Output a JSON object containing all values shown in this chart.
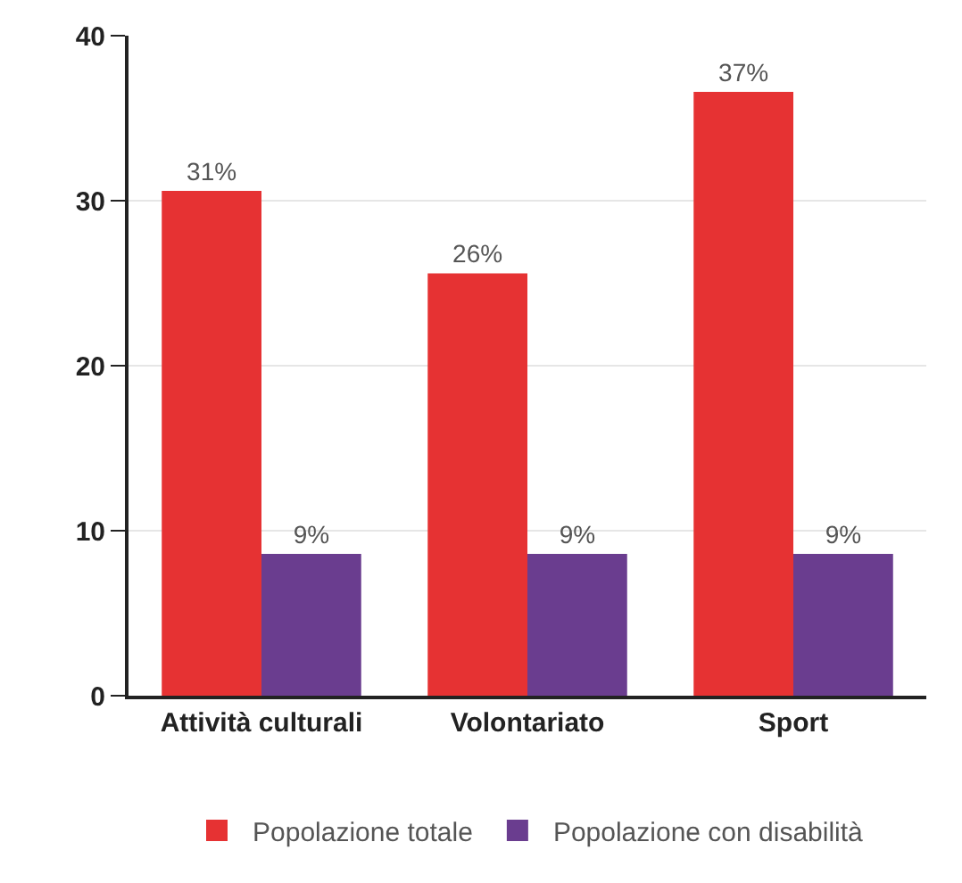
{
  "chart_data": {
    "type": "bar",
    "categories": [
      "Attività culturali",
      "Volontariato",
      "Sport"
    ],
    "series": [
      {
        "name": "Popolazione totale",
        "color": "#e63233",
        "values": [
          30.6,
          25.6,
          36.6
        ],
        "value_labels": [
          "31%",
          "26%",
          "37%"
        ]
      },
      {
        "name": "Popolazione con disabilità",
        "color": "#6a3d8f",
        "values": [
          8.6,
          8.6,
          8.6
        ],
        "value_labels": [
          "9%",
          "9%",
          "9%"
        ]
      }
    ],
    "ylim": [
      0,
      40
    ],
    "yticks": [
      0,
      10,
      20,
      30,
      40
    ],
    "grid": "y",
    "legend": "bottom"
  }
}
